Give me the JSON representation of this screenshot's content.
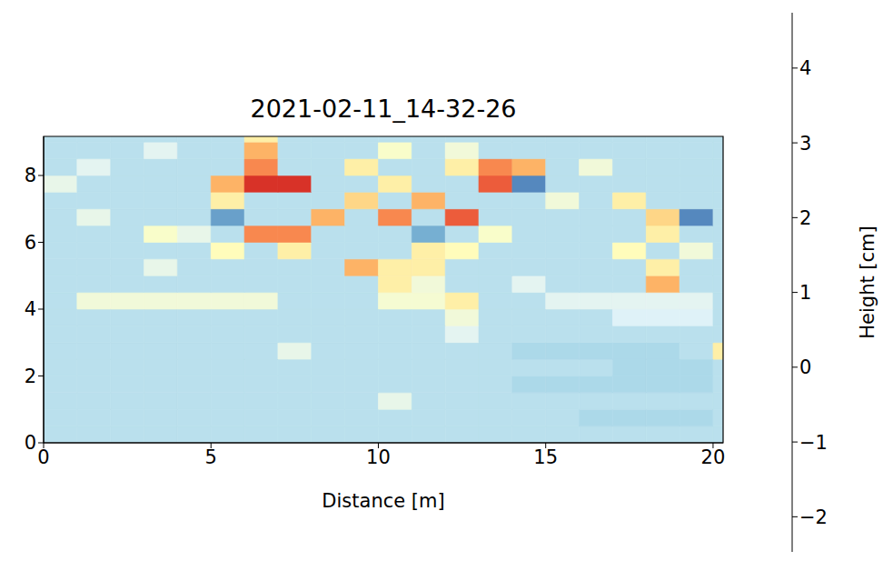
{
  "chart_data": {
    "type": "heatmap",
    "title": "2021-02-11_14-32-26",
    "x_label": "Distance [m]",
    "xlim": [
      0,
      20.3
    ],
    "ylim": [
      0,
      9.17
    ],
    "xticks": [
      0,
      5,
      10,
      15,
      20
    ],
    "yticks": [
      0,
      2,
      4,
      6,
      8
    ],
    "x_edges": [
      0,
      1,
      2,
      3,
      4,
      5,
      6,
      7,
      8,
      9,
      10,
      11,
      12,
      13,
      14,
      15,
      16,
      17,
      18,
      19,
      20,
      20.3
    ],
    "y_edges": [
      0,
      0.5,
      1,
      1.5,
      2,
      2.5,
      3,
      3.5,
      4,
      4.5,
      5,
      5.5,
      6,
      6.5,
      7,
      7.5,
      8,
      8.5,
      9,
      9.17
    ],
    "z": [
      [
        -0.1,
        -0.1,
        -0.1,
        -0.1,
        -0.1,
        -0.1,
        -0.1,
        -0.1,
        -0.1,
        -0.1,
        -0.1,
        -0.1,
        -0.1,
        -0.1,
        -0.1,
        -0.1,
        -0.1,
        -0.1,
        -0.1,
        -0.1,
        -0.1
      ],
      [
        -0.1,
        -0.1,
        -0.1,
        -0.1,
        -0.1,
        -0.1,
        -0.1,
        -0.1,
        -0.1,
        -0.1,
        -0.1,
        -0.1,
        -0.1,
        -0.1,
        -0.1,
        -0.1,
        -0.3,
        -0.3,
        -0.3,
        -0.3,
        -0.1
      ],
      [
        -0.1,
        -0.1,
        -0.1,
        -0.1,
        -0.1,
        -0.1,
        -0.1,
        -0.1,
        -0.1,
        -0.1,
        0.6,
        -0.1,
        -0.1,
        -0.1,
        -0.1,
        -0.1,
        -0.1,
        -0.1,
        -0.1,
        -0.1,
        -0.1
      ],
      [
        -0.1,
        -0.1,
        -0.1,
        -0.1,
        -0.1,
        -0.1,
        -0.1,
        -0.1,
        -0.1,
        -0.1,
        -0.1,
        -0.1,
        -0.1,
        -0.1,
        -0.3,
        -0.3,
        -0.3,
        -0.3,
        -0.3,
        -0.3,
        -0.1
      ],
      [
        -0.1,
        -0.1,
        -0.1,
        -0.1,
        -0.1,
        -0.1,
        -0.1,
        -0.1,
        -0.1,
        -0.1,
        -0.1,
        -0.1,
        -0.1,
        -0.1,
        -0.1,
        -0.1,
        -0.1,
        -0.3,
        -0.3,
        -0.3,
        -0.1
      ],
      [
        -0.1,
        -0.1,
        -0.1,
        -0.1,
        -0.1,
        -0.1,
        -0.1,
        0.6,
        -0.1,
        -0.1,
        -0.1,
        -0.1,
        -0.1,
        -0.1,
        -0.3,
        -0.3,
        -0.3,
        -0.3,
        -0.3,
        -0.1,
        1.5
      ],
      [
        -0.1,
        -0.1,
        -0.1,
        -0.1,
        -0.1,
        -0.1,
        -0.1,
        -0.1,
        -0.1,
        -0.1,
        -0.1,
        -0.1,
        0.5,
        -0.1,
        -0.1,
        -0.1,
        -0.1,
        -0.1,
        -0.1,
        -0.1,
        -0.1
      ],
      [
        -0.1,
        -0.1,
        -0.1,
        -0.1,
        -0.1,
        -0.1,
        -0.1,
        -0.1,
        -0.1,
        -0.1,
        -0.1,
        -0.1,
        0.8,
        -0.1,
        -0.1,
        -0.1,
        -0.1,
        0.4,
        0.4,
        0.4,
        -0.1
      ],
      [
        -0.1,
        0.8,
        0.8,
        0.8,
        0.8,
        0.8,
        0.8,
        -0.1,
        -0.1,
        -0.1,
        0.9,
        0.9,
        1.5,
        -0.1,
        -0.1,
        0.5,
        0.5,
        0.5,
        0.5,
        0.5,
        -0.1
      ],
      [
        -0.1,
        -0.1,
        -0.1,
        -0.1,
        -0.1,
        -0.1,
        -0.1,
        -0.1,
        -0.1,
        -0.1,
        1.5,
        0.8,
        -0.1,
        -0.1,
        0.5,
        -0.1,
        -0.1,
        -0.1,
        2.5,
        -0.1,
        -0.1
      ],
      [
        -0.1,
        -0.1,
        -0.1,
        0.6,
        -0.1,
        -0.1,
        -0.1,
        -0.1,
        -0.1,
        2.5,
        1.5,
        1.5,
        -0.1,
        -0.1,
        -0.1,
        -0.1,
        -0.1,
        -0.1,
        1.5,
        -0.1,
        -0.1
      ],
      [
        -0.1,
        -0.1,
        -0.1,
        -0.1,
        -0.1,
        1.2,
        -0.1,
        1.5,
        -0.1,
        -0.1,
        -0.1,
        1.5,
        1.2,
        -0.1,
        -0.1,
        -0.1,
        -0.1,
        1.2,
        -0.1,
        0.8,
        -0.1
      ],
      [
        -0.1,
        -0.1,
        -0.1,
        1.0,
        0.6,
        -0.1,
        3.0,
        3.0,
        -0.1,
        -0.1,
        -0.1,
        -1.0,
        -0.1,
        1.0,
        -0.1,
        -0.1,
        -0.1,
        -0.1,
        1.5,
        -0.1,
        -0.1
      ],
      [
        -0.1,
        0.6,
        -0.1,
        -0.1,
        -0.1,
        -1.2,
        -0.1,
        -0.1,
        2.5,
        -0.1,
        3.0,
        -0.1,
        3.5,
        -0.1,
        -0.1,
        -0.1,
        -0.1,
        -0.1,
        2.0,
        -1.5,
        -0.1
      ],
      [
        -0.1,
        -0.1,
        -0.1,
        -0.1,
        -0.1,
        1.5,
        -0.1,
        -0.1,
        -0.1,
        2.0,
        -0.1,
        2.5,
        -0.1,
        -0.1,
        -0.1,
        0.8,
        -0.1,
        1.5,
        -0.1,
        -0.1,
        -0.1
      ],
      [
        0.6,
        -0.1,
        -0.1,
        -0.1,
        -0.1,
        2.5,
        4.0,
        4.0,
        -0.1,
        -0.1,
        1.5,
        -0.1,
        -0.1,
        3.5,
        -1.5,
        -0.1,
        -0.1,
        -0.1,
        -0.1,
        -0.1,
        -0.1
      ],
      [
        -0.1,
        0.5,
        -0.1,
        -0.1,
        -0.1,
        -0.1,
        3.0,
        -0.1,
        -0.1,
        1.5,
        -0.1,
        -0.1,
        1.5,
        3.0,
        2.5,
        -0.1,
        0.8,
        -0.1,
        -0.1,
        -0.1,
        -0.1
      ],
      [
        -0.1,
        -0.1,
        -0.1,
        0.5,
        -0.1,
        -0.1,
        2.5,
        -0.1,
        -0.1,
        -0.1,
        1.0,
        -0.1,
        0.8,
        -0.1,
        -0.1,
        -0.1,
        -0.1,
        -0.1,
        -0.1,
        -0.1,
        -0.1
      ],
      [
        -0.1,
        -0.1,
        -0.1,
        -0.1,
        -0.1,
        -0.1,
        1.5,
        -0.1,
        -0.1,
        -0.1,
        -0.1,
        -0.1,
        -0.1,
        -0.1,
        -0.1,
        -0.1,
        -0.1,
        -0.1,
        -0.1,
        -0.1,
        -0.1
      ]
    ],
    "colorbar": {
      "label": "Height [cm]",
      "lim": [
        -2.47,
        4.74
      ],
      "ticks": [
        {
          "value": -2,
          "label": "−2"
        },
        {
          "value": -1,
          "label": "−1"
        },
        0,
        1,
        2,
        3,
        4
      ]
    }
  }
}
